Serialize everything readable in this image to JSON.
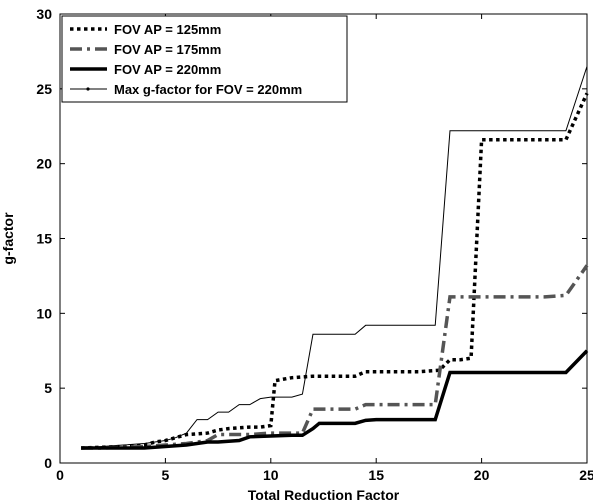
{
  "chart_data": {
    "type": "line",
    "xlabel": "Total Reduction Factor",
    "ylabel": "g-factor",
    "xlim": [
      0,
      25
    ],
    "ylim": [
      0,
      30
    ],
    "xticks": [
      0,
      5,
      10,
      15,
      20,
      25
    ],
    "yticks": [
      0,
      5,
      10,
      15,
      20,
      25,
      30
    ],
    "grid": false,
    "legend_position": "top-left",
    "series": [
      {
        "name": "FOV AP = 125mm",
        "style": "dotted",
        "color": "#000000",
        "x": [
          1,
          2,
          3,
          4,
          4.5,
          5,
          5.5,
          6,
          7,
          7.5,
          8,
          9,
          9.5,
          10,
          10.2,
          11,
          12,
          13,
          14,
          14.5,
          15,
          16,
          17,
          18,
          18.5,
          19,
          19.5,
          20,
          21,
          22,
          23,
          24,
          25
        ],
        "y": [
          1.0,
          1.05,
          1.1,
          1.2,
          1.4,
          1.5,
          1.7,
          1.9,
          2.0,
          2.2,
          2.3,
          2.4,
          2.4,
          2.5,
          5.5,
          5.7,
          5.8,
          5.8,
          5.8,
          6.1,
          6.1,
          6.1,
          6.1,
          6.2,
          6.9,
          6.9,
          7.0,
          21.6,
          21.6,
          21.6,
          21.6,
          21.6,
          24.7
        ]
      },
      {
        "name": "FOV AP = 175mm",
        "style": "dashdot",
        "color": "#555555",
        "x": [
          1,
          2,
          3,
          4,
          5,
          6,
          7,
          7.5,
          8,
          9,
          10,
          11,
          11.5,
          12,
          13,
          14,
          14.5,
          15,
          16,
          17,
          17.8,
          18.5,
          19,
          20,
          21,
          22,
          23,
          24,
          25
        ],
        "y": [
          1.0,
          1.0,
          1.05,
          1.1,
          1.2,
          1.3,
          1.5,
          1.9,
          1.9,
          1.9,
          2.0,
          2.0,
          2.0,
          3.6,
          3.6,
          3.6,
          3.9,
          3.9,
          3.9,
          3.9,
          3.9,
          11.1,
          11.1,
          11.1,
          11.1,
          11.1,
          11.1,
          11.2,
          13.2
        ]
      },
      {
        "name": "FOV AP = 220mm",
        "style": "solid-thick",
        "color": "#000000",
        "x": [
          1,
          2,
          3,
          4,
          5,
          6,
          7,
          7.5,
          8,
          8.5,
          9,
          10,
          11,
          11.5,
          12,
          12.3,
          13,
          14,
          14.5,
          15,
          16,
          17,
          17.8,
          18.5,
          19,
          20,
          21,
          22,
          23,
          24,
          25
        ],
        "y": [
          1.0,
          1.0,
          1.0,
          1.0,
          1.1,
          1.2,
          1.4,
          1.4,
          1.45,
          1.5,
          1.75,
          1.8,
          1.85,
          1.85,
          2.3,
          2.65,
          2.65,
          2.65,
          2.85,
          2.9,
          2.9,
          2.9,
          2.9,
          6.05,
          6.05,
          6.05,
          6.05,
          6.05,
          6.05,
          6.05,
          7.5
        ]
      },
      {
        "name": "Max g-factor for FOV = 220mm",
        "style": "solid-thin",
        "color": "#000000",
        "x": [
          1,
          2,
          3,
          4,
          5,
          5.5,
          6,
          6.5,
          7,
          7.5,
          8,
          8.5,
          9,
          9.5,
          10,
          11,
          11.5,
          12,
          12.3,
          13,
          14,
          14.5,
          15,
          16,
          17,
          17.8,
          18.5,
          19,
          20,
          21,
          22,
          23,
          24,
          25
        ],
        "y": [
          1.0,
          1.1,
          1.2,
          1.3,
          1.5,
          1.7,
          2.0,
          2.9,
          2.9,
          3.4,
          3.4,
          3.9,
          3.9,
          4.3,
          4.4,
          4.4,
          4.6,
          8.6,
          8.6,
          8.6,
          8.6,
          9.2,
          9.2,
          9.2,
          9.2,
          9.2,
          22.2,
          22.2,
          22.2,
          22.2,
          22.2,
          22.2,
          22.2,
          26.5
        ]
      }
    ]
  }
}
